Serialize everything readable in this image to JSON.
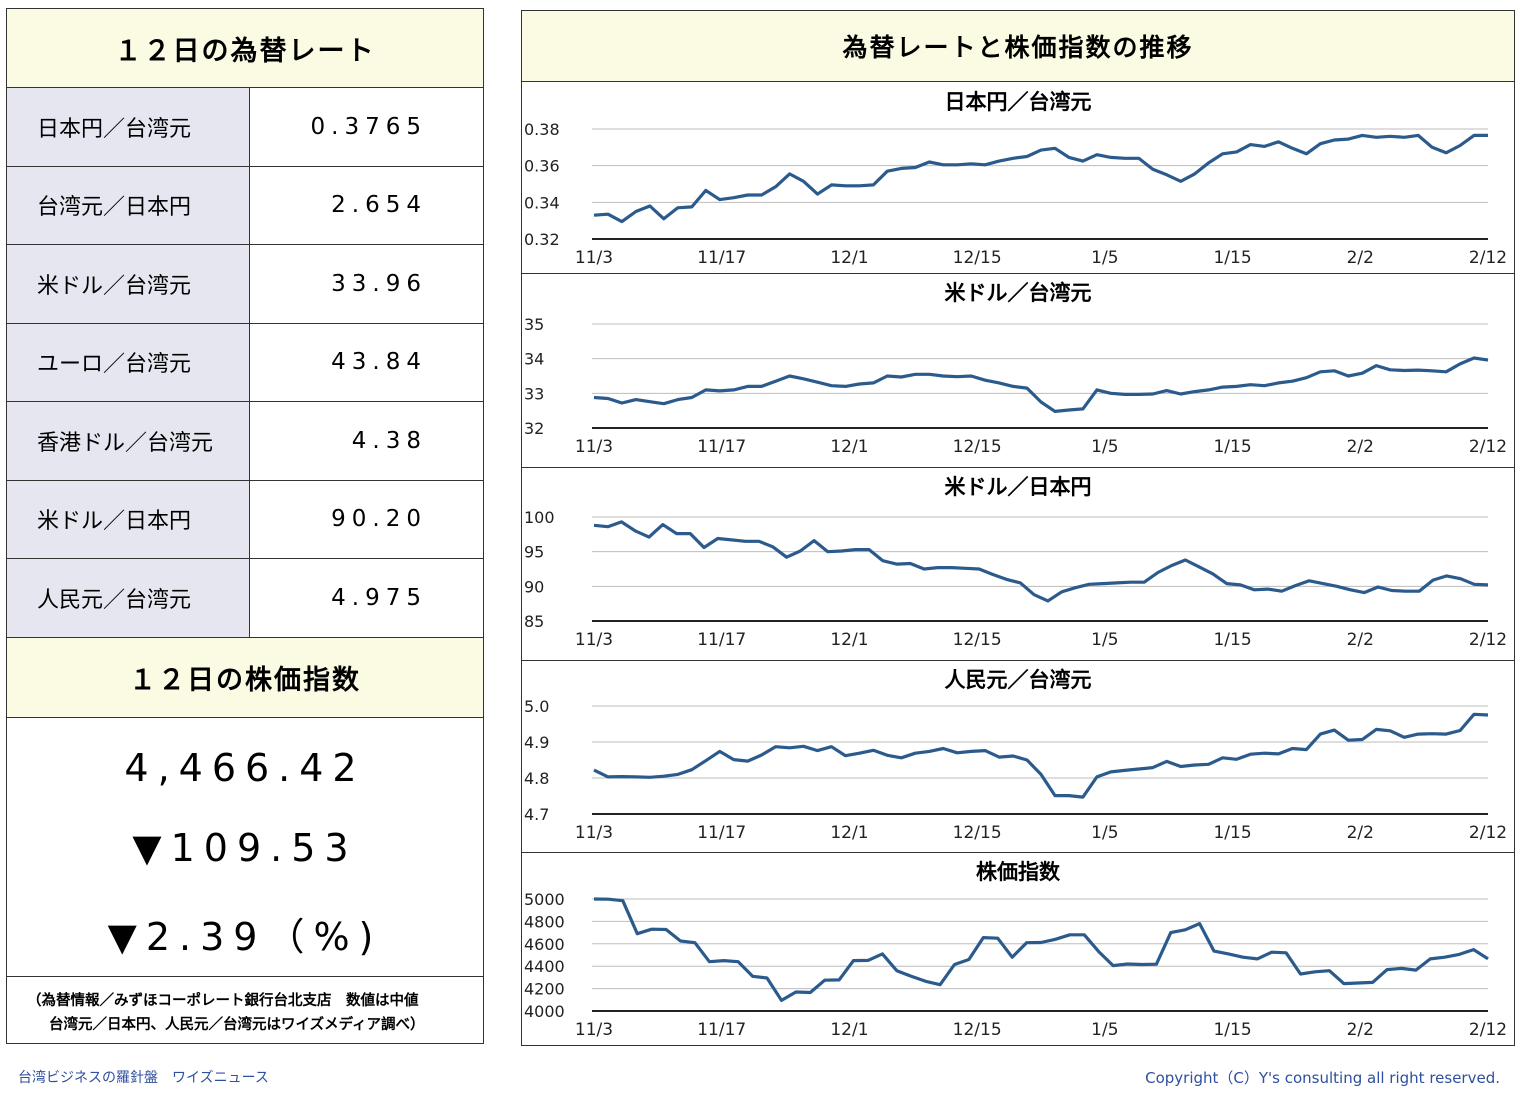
{
  "rates": {
    "title": "１２日の為替レート",
    "rows": [
      {
        "pair": "日本円／台湾元",
        "value": "0.3765"
      },
      {
        "pair": "台湾元／日本円",
        "value": "2.654"
      },
      {
        "pair": "米ドル／台湾元",
        "value": "33.96"
      },
      {
        "pair": "ユーロ／台湾元",
        "value": "43.84"
      },
      {
        "pair": "香港ドル／台湾元",
        "value": "4.38"
      },
      {
        "pair": "米ドル／日本円",
        "value": "90.20"
      },
      {
        "pair": "人民元／台湾元",
        "value": "4.975"
      }
    ]
  },
  "stock": {
    "title": "１２日の株価指数",
    "index": "4,466.42",
    "change": "▼109.53",
    "change_pct": "▼2.39（%)"
  },
  "note": {
    "line1": "（為替情報／みずほコーポレート銀行台北支店　数値は中値",
    "line2": "台湾元／日本円、人民元／台湾元はワイズメディア調べ）"
  },
  "charts_title": "為替レートと株価指数の推移",
  "footer": {
    "left": "台湾ビジネスの羅針盤　ワイズニュース",
    "right": "Copyright（C）Y's consulting all right reserved."
  },
  "colors": {
    "line": "#2b5a8c",
    "header_bg": "#fbfbe3",
    "pair_bg": "#e6e6f0",
    "footer_text": "#2f4f9f"
  },
  "chart_data": [
    {
      "type": "line",
      "title": "日本円／台湾元",
      "x_tick_labels": [
        "11/3",
        "11/17",
        "12/1",
        "12/15",
        "1/5",
        "1/15",
        "2/2",
        "2/12"
      ],
      "ylim": [
        0.32,
        0.38
      ],
      "yticks": [
        "0.32",
        "0.34",
        "0.36",
        "0.38"
      ],
      "grid": true,
      "series": [
        {
          "values": [
            0.333,
            0.3335,
            0.3295,
            0.335,
            0.338,
            0.331,
            0.337,
            0.3375,
            0.3465,
            0.3415,
            0.3425,
            0.344,
            0.344,
            0.3485,
            0.3555,
            0.3515,
            0.3445,
            0.3495,
            0.349,
            0.349,
            0.3495,
            0.357,
            0.3585,
            0.359,
            0.362,
            0.3605,
            0.3605,
            0.361,
            0.3605,
            0.3625,
            0.364,
            0.365,
            0.3685,
            0.3695,
            0.3645,
            0.3625,
            0.366,
            0.3645,
            0.364,
            0.364,
            0.358,
            0.355,
            0.3515,
            0.3555,
            0.3615,
            0.3665,
            0.3675,
            0.3715,
            0.3705,
            0.373,
            0.3695,
            0.3665,
            0.372,
            0.374,
            0.3745,
            0.3765,
            0.3755,
            0.376,
            0.3755,
            0.3765,
            0.37,
            0.367,
            0.371,
            0.3765,
            0.3765
          ]
        }
      ]
    },
    {
      "type": "line",
      "title": "米ドル／台湾元",
      "x_tick_labels": [
        "11/3",
        "11/17",
        "12/1",
        "12/15",
        "1/5",
        "1/15",
        "2/2",
        "2/12"
      ],
      "ylim": [
        32,
        35
      ],
      "yticks": [
        "32",
        "33",
        "34",
        "35"
      ],
      "grid": true,
      "series": [
        {
          "values": [
            32.88,
            32.85,
            32.72,
            32.82,
            32.76,
            32.7,
            32.82,
            32.88,
            33.1,
            33.07,
            33.1,
            33.2,
            33.2,
            33.35,
            33.5,
            33.42,
            33.32,
            33.22,
            33.2,
            33.27,
            33.3,
            33.5,
            33.47,
            33.55,
            33.55,
            33.5,
            33.48,
            33.5,
            33.38,
            33.3,
            33.2,
            33.15,
            32.75,
            32.48,
            32.52,
            32.55,
            33.1,
            33.0,
            32.97,
            32.97,
            32.98,
            33.08,
            32.98,
            33.05,
            33.1,
            33.18,
            33.2,
            33.25,
            33.22,
            33.3,
            33.35,
            33.45,
            33.62,
            33.65,
            33.5,
            33.58,
            33.8,
            33.68,
            33.66,
            33.67,
            33.65,
            33.62,
            33.85,
            34.02,
            33.96
          ]
        }
      ]
    },
    {
      "type": "line",
      "title": "米ドル／日本円",
      "x_tick_labels": [
        "11/3",
        "11/17",
        "12/1",
        "12/15",
        "1/5",
        "1/15",
        "2/2",
        "2/12"
      ],
      "ylim": [
        85,
        100
      ],
      "yticks": [
        "85",
        "90",
        "95",
        "100"
      ],
      "grid": true,
      "series": [
        {
          "values": [
            98.8,
            98.6,
            99.3,
            98.0,
            97.1,
            98.9,
            97.6,
            97.6,
            95.6,
            96.9,
            96.7,
            96.5,
            96.5,
            95.7,
            94.2,
            95.1,
            96.6,
            95.0,
            95.1,
            95.3,
            95.3,
            93.7,
            93.2,
            93.3,
            92.5,
            92.7,
            92.7,
            92.6,
            92.5,
            91.7,
            91.0,
            90.5,
            88.8,
            87.9,
            89.2,
            89.8,
            90.3,
            90.4,
            90.5,
            90.6,
            90.6,
            92.0,
            93.0,
            93.8,
            92.8,
            91.8,
            90.4,
            90.2,
            89.5,
            89.6,
            89.3,
            90.1,
            90.8,
            90.4,
            90.0,
            89.5,
            89.1,
            89.9,
            89.4,
            89.3,
            89.3,
            90.9,
            91.5,
            91.1,
            90.3,
            90.2
          ]
        }
      ]
    },
    {
      "type": "line",
      "title": "人民元／台湾元",
      "x_tick_labels": [
        "11/3",
        "11/17",
        "12/1",
        "12/15",
        "1/5",
        "1/15",
        "2/2",
        "2/12"
      ],
      "ylim": [
        4.7,
        5.0
      ],
      "yticks": [
        "4.7",
        "4.8",
        "4.9",
        "5.0"
      ],
      "grid": true,
      "series": [
        {
          "values": [
            4.822,
            4.803,
            4.804,
            4.803,
            4.802,
            4.805,
            4.81,
            4.823,
            4.848,
            4.874,
            4.851,
            4.847,
            4.864,
            4.887,
            4.884,
            4.888,
            4.876,
            4.887,
            4.862,
            4.869,
            4.877,
            4.863,
            4.856,
            4.869,
            4.874,
            4.882,
            4.87,
            4.874,
            4.876,
            4.858,
            4.861,
            4.85,
            4.81,
            4.751,
            4.751,
            4.747,
            4.803,
            4.817,
            4.821,
            4.825,
            4.829,
            4.846,
            4.832,
            4.836,
            4.838,
            4.856,
            4.852,
            4.866,
            4.869,
            4.867,
            4.882,
            4.879,
            4.922,
            4.933,
            4.905,
            4.907,
            4.935,
            4.931,
            4.913,
            4.922,
            4.923,
            4.922,
            4.932,
            4.977,
            4.975
          ]
        }
      ]
    },
    {
      "type": "line",
      "title": "株価指数",
      "x_tick_labels": [
        "11/3",
        "11/17",
        "12/1",
        "12/15",
        "1/5",
        "1/15",
        "2/2",
        "2/12"
      ],
      "ylim": [
        4000,
        5000
      ],
      "yticks": [
        "4000",
        "4200",
        "4400",
        "4600",
        "4800",
        "5000"
      ],
      "grid": true,
      "series": [
        {
          "values": [
            5000,
            4998,
            4985,
            4690,
            4730,
            4728,
            4625,
            4610,
            4440,
            4450,
            4440,
            4310,
            4295,
            4095,
            4170,
            4165,
            4275,
            4278,
            4450,
            4452,
            4510,
            4360,
            4310,
            4265,
            4235,
            4415,
            4460,
            4655,
            4650,
            4480,
            4610,
            4612,
            4640,
            4680,
            4680,
            4530,
            4405,
            4420,
            4415,
            4418,
            4700,
            4725,
            4780,
            4535,
            4510,
            4480,
            4465,
            4525,
            4520,
            4330,
            4350,
            4360,
            4245,
            4250,
            4255,
            4370,
            4380,
            4365,
            4465,
            4480,
            4505,
            4548,
            4466
          ]
        }
      ]
    }
  ]
}
